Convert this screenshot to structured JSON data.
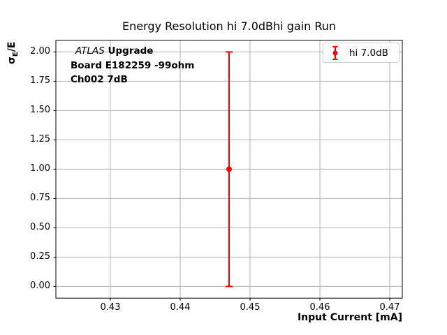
{
  "chart_data": {
    "type": "scatter",
    "title": "Energy Resolution hi 7.0dBhi gain Run",
    "xlabel": "Input Current [mA]",
    "ylabel": "σ_E/E",
    "ylabel_parts": {
      "sigma": "σ",
      "sub": "E",
      "rest": "/E"
    },
    "xlim": [
      0.4222,
      0.4718
    ],
    "ylim": [
      -0.1,
      2.1
    ],
    "grid": true,
    "legend_position": "upper right",
    "x_ticks": {
      "values": [
        0.43,
        0.44,
        0.45,
        0.46,
        0.47
      ],
      "labels": [
        "0.43",
        "0.44",
        "0.45",
        "0.46",
        "0.47"
      ]
    },
    "y_ticks": {
      "values": [
        0.0,
        0.25,
        0.5,
        0.75,
        1.0,
        1.25,
        1.5,
        1.75,
        2.0
      ],
      "labels": [
        "0.00",
        "0.25",
        "0.50",
        "0.75",
        "1.00",
        "1.25",
        "1.50",
        "1.75",
        "2.00"
      ]
    },
    "series": [
      {
        "name": "hi 7.0dB",
        "color": "#ff0000",
        "points": [
          {
            "x": 0.447,
            "y": 1.0,
            "yerr": 1.0
          }
        ]
      }
    ],
    "legend": {
      "entries": [
        {
          "label": "hi 7.0dB",
          "color": "#ff0000"
        }
      ]
    },
    "annotation": {
      "line1_italic": "ATLAS",
      "line1_bold": " Upgrade",
      "line2": "Board E182259 -99ohm",
      "line3": "Ch002 7dB"
    }
  },
  "colors": {
    "grid": "#b0b0b0",
    "spine": "#000000",
    "text": "#000000",
    "series": "#ff0000",
    "legend_border": "#cccccc"
  }
}
